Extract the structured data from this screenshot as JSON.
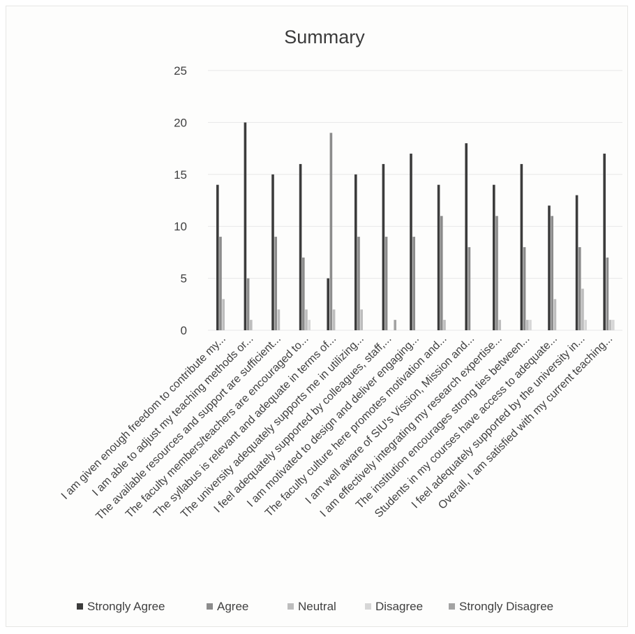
{
  "chart_data": {
    "type": "bar",
    "title": "Summary",
    "xlabel": "",
    "ylabel": "",
    "ylim": [
      0,
      25
    ],
    "yticks": [
      0,
      5,
      10,
      15,
      20,
      25
    ],
    "grid": true,
    "legend_position": "bottom",
    "categories": [
      "I am given enough freedom to contribute my...",
      "I am able to adjust my teaching methods or...",
      "The available resources and support are sufficient...",
      "The faculty members/teachers are encouraged to...",
      "The syllabus is relevant and adequate in terms of...",
      "The university adequately supports me in utilizing...",
      "I feel adequately supported by colleagues, staff,...",
      "I am motivated to design and deliver engaging...",
      "The faculty culture here promotes motivation and...",
      "I am well aware of SIU's Vission, Mission and...",
      "I am effectively integrating my research expertise...",
      "The institution encourages strong ties between...",
      "Students in my courses have access to adequate...",
      "I feel adequately supported by the university in...",
      "Overall, I am satisfied with my current teaching..."
    ],
    "series": [
      {
        "name": "Strongly Agree",
        "color": "#3c3c3c",
        "values": [
          14,
          20,
          15,
          16,
          5,
          15,
          16,
          17,
          14,
          18,
          14,
          16,
          12,
          13,
          17
        ]
      },
      {
        "name": "Agree",
        "color": "#8c8c8c",
        "values": [
          9,
          5,
          9,
          7,
          19,
          9,
          9,
          9,
          11,
          8,
          11,
          8,
          11,
          8,
          7
        ]
      },
      {
        "name": "Neutral",
        "color": "#bdbdbd",
        "values": [
          3,
          1,
          2,
          2,
          2,
          2,
          0,
          0,
          1,
          0,
          1,
          1,
          3,
          4,
          1
        ]
      },
      {
        "name": "Disagree",
        "color": "#d6d6d6",
        "values": [
          0,
          0,
          0,
          1,
          0,
          0,
          0,
          0,
          0,
          0,
          0,
          1,
          0,
          1,
          1
        ]
      },
      {
        "name": "Strongly Disagree",
        "color": "#a3a3a3",
        "values": [
          0,
          0,
          0,
          0,
          0,
          0,
          1,
          0,
          0,
          0,
          0,
          0,
          0,
          0,
          0
        ]
      }
    ]
  }
}
